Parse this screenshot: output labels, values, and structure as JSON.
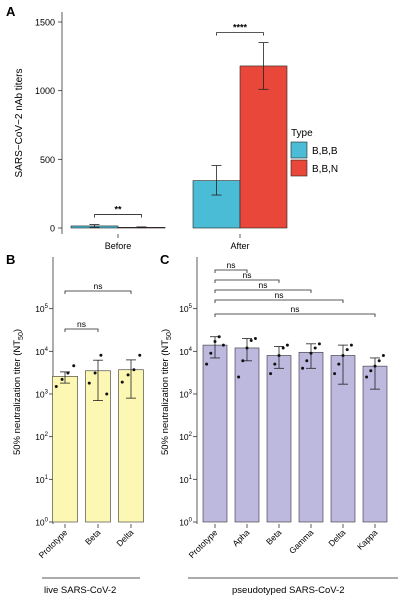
{
  "chart_data": [
    {
      "panel": "A",
      "type": "bar",
      "ylabel": "SARS−CoV−2 nAb titers",
      "ylim": [
        0,
        1500
      ],
      "yticks": [
        0,
        500,
        1000,
        1500
      ],
      "categories": [
        "Before",
        "After"
      ],
      "legend": {
        "title": "Type",
        "placement": "right"
      },
      "series": [
        {
          "name": "B,B,B",
          "color": "#4bbcd5",
          "values": [
            15,
            345
          ],
          "err_low": [
            5,
            240
          ],
          "err_high": [
            25,
            455
          ]
        },
        {
          "name": "B,B,N",
          "color": "#e8473a",
          "values": [
            5,
            1180
          ],
          "err_low": [
            2,
            1010
          ],
          "err_high": [
            8,
            1350
          ]
        }
      ],
      "significance": [
        {
          "category": "Before",
          "label": "**"
        },
        {
          "category": "After",
          "label": "****"
        }
      ]
    },
    {
      "panel": "B",
      "type": "bar",
      "ylabel": "50% neutralization titer (NT",
      "ylabel_sub": "50",
      "ylabel_end": ")",
      "scale": "log",
      "ylim": [
        1,
        1000000
      ],
      "yticks": [
        {
          "value": 1,
          "mantissa": "10",
          "exp": "0"
        },
        {
          "value": 10,
          "mantissa": "10",
          "exp": "1"
        },
        {
          "value": 100,
          "mantissa": "10",
          "exp": "2"
        },
        {
          "value": 1000,
          "mantissa": "10",
          "exp": "3"
        },
        {
          "value": 10000,
          "mantissa": "10",
          "exp": "4"
        },
        {
          "value": 100000,
          "mantissa": "10",
          "exp": "5"
        }
      ],
      "xlabel": "live SARS-CoV-2",
      "color": "#fcf8b4",
      "categories": [
        "Prototype",
        "Beta",
        "Delta"
      ],
      "values": [
        2600,
        3500,
        3700
      ],
      "err_low": [
        1800,
        700,
        800
      ],
      "err_high": [
        3300,
        6200,
        6300
      ],
      "points": [
        [
          1500,
          2200,
          3100,
          4600
        ],
        [
          1800,
          3100,
          8100,
          1000
        ],
        [
          1900,
          2800,
          3700,
          8100
        ]
      ],
      "significance": [
        {
          "from": 0,
          "to": 1,
          "label": "ns"
        },
        {
          "from": 0,
          "to": 2,
          "label": "ns"
        }
      ]
    },
    {
      "panel": "C",
      "type": "bar",
      "ylabel": "50% neutralization titer (NT",
      "ylabel_sub": "50",
      "ylabel_end": ")",
      "scale": "log",
      "ylim": [
        1,
        1000000
      ],
      "yticks": [
        {
          "value": 1,
          "mantissa": "10",
          "exp": "0"
        },
        {
          "value": 10,
          "mantissa": "10",
          "exp": "1"
        },
        {
          "value": 100,
          "mantissa": "10",
          "exp": "2"
        },
        {
          "value": 1000,
          "mantissa": "10",
          "exp": "3"
        },
        {
          "value": 10000,
          "mantissa": "10",
          "exp": "4"
        },
        {
          "value": 100000,
          "mantissa": "10",
          "exp": "5"
        }
      ],
      "xlabel": "pseudotyped SARS-CoV-2",
      "color": "#bcb8de",
      "categories": [
        "Prototype",
        "Apha",
        "Beta",
        "Gamma",
        "Delta",
        "Kappa"
      ],
      "values": [
        14000,
        12000,
        8000,
        9500,
        8000,
        4500
      ],
      "err_low": [
        7000,
        6000,
        4000,
        4000,
        1700,
        1300
      ],
      "err_high": [
        22000,
        20000,
        13000,
        15000,
        14000,
        7000
      ],
      "points": [
        [
          5000,
          9000,
          17000,
          22000,
          14000
        ],
        [
          2500,
          6000,
          12000,
          18000,
          20000
        ],
        [
          3000,
          5000,
          8000,
          12000,
          14000
        ],
        [
          4000,
          6000,
          9000,
          12000,
          15000
        ],
        [
          3000,
          5000,
          8000,
          11000,
          14000
        ],
        [
          2500,
          3500,
          4500,
          6000,
          8000
        ]
      ],
      "significance": [
        {
          "from": 0,
          "to": 1,
          "label": "ns"
        },
        {
          "from": 0,
          "to": 2,
          "label": "ns"
        },
        {
          "from": 0,
          "to": 3,
          "label": "ns"
        },
        {
          "from": 0,
          "to": 4,
          "label": "ns"
        },
        {
          "from": 0,
          "to": 5,
          "label": "ns"
        }
      ]
    }
  ]
}
